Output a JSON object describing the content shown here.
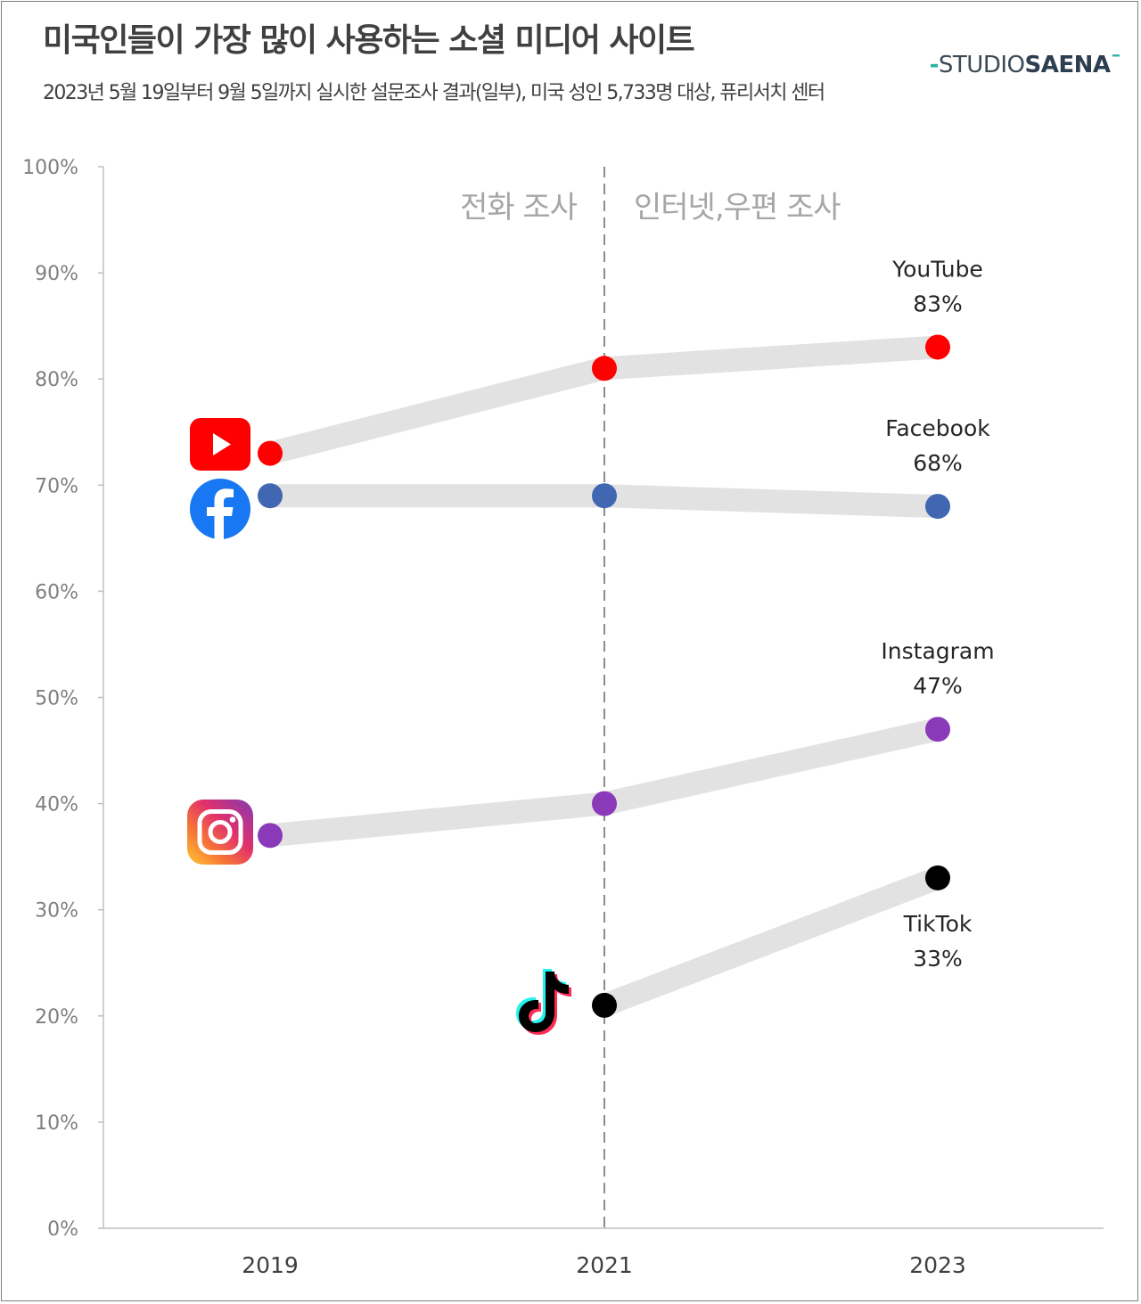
{
  "header": {
    "title": "미국인들이 가장 많이 사용하는 소셜 미디어 사이트",
    "subtitle": "2023년 5월 19일부터 9월 5일까지 실시한 설문조사 결과(일부), 미국 성인 5,733명 대상, 퓨리서치 센터",
    "brand_prefix": "STUDIO",
    "brand_name": "SAENA"
  },
  "annotations": {
    "left_region": "전화 조사",
    "right_region": "인터넷,우편 조사"
  },
  "chart_data": {
    "type": "line",
    "title": "미국인들이 가장 많이 사용하는 소셜 미디어 사이트",
    "categories": [
      "2019",
      "2021",
      "2023"
    ],
    "ylim": [
      0,
      100
    ],
    "yticks": [
      0,
      10,
      20,
      30,
      40,
      50,
      60,
      70,
      80,
      90,
      100
    ],
    "ytick_labels": [
      "0%",
      "10%",
      "20%",
      "30%",
      "40%",
      "50%",
      "60%",
      "70%",
      "80%",
      "90%",
      "100%"
    ],
    "divider_between": [
      "2019",
      "2023"
    ],
    "divider_at": "2021",
    "series": [
      {
        "name": "YouTube",
        "label_value": "83%",
        "values": [
          73,
          81,
          83
        ],
        "color": "#ff0000",
        "icon": "youtube-icon"
      },
      {
        "name": "Facebook",
        "label_value": "68%",
        "values": [
          69,
          69,
          68
        ],
        "color": "#4267b2",
        "icon": "facebook-icon"
      },
      {
        "name": "Instagram",
        "label_value": "47%",
        "values": [
          37,
          40,
          47
        ],
        "color": "#8a3ab9",
        "icon": "instagram-icon"
      },
      {
        "name": "TikTok",
        "label_value": "33%",
        "values": [
          null,
          21,
          33
        ],
        "color": "#000000",
        "icon": "tiktok-icon"
      }
    ],
    "band_color": "#e2e2e2"
  }
}
